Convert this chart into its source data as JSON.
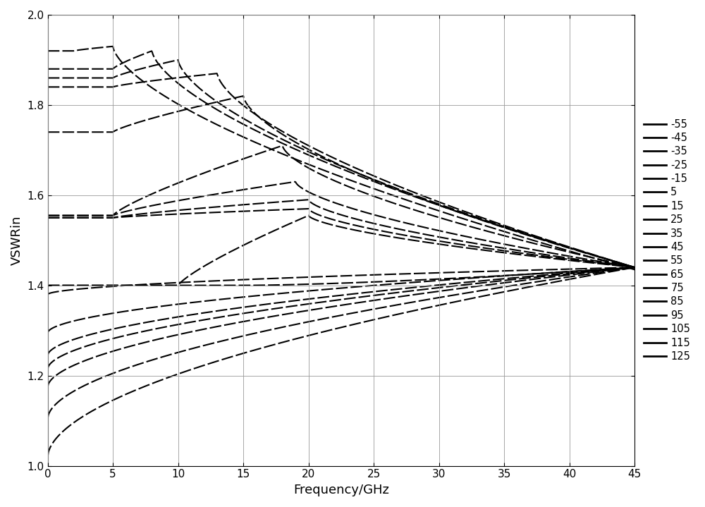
{
  "temperatures": [
    -55,
    -45,
    -35,
    -25,
    -15,
    5,
    15,
    25,
    35,
    45,
    55,
    65,
    75,
    85,
    95,
    105,
    115,
    125
  ],
  "freq_range": [
    0,
    45
  ],
  "ylim": [
    1.0,
    2.0
  ],
  "xlabel": "Frequency/GHz",
  "ylabel": "VSWRin",
  "xticks": [
    0,
    5,
    10,
    15,
    20,
    25,
    30,
    35,
    40,
    45
  ],
  "yticks": [
    1.0,
    1.2,
    1.4,
    1.6,
    1.8,
    2.0
  ],
  "line_color": "#000000",
  "background_color": "#ffffff",
  "grid_color": "#999999",
  "curve_data": {
    "-55": {
      "start": 1.92,
      "flat_end": 2.0,
      "peak": 1.93,
      "peak_f": 5.0,
      "end": 1.435,
      "shape": "flat_peak_fall"
    },
    "-45": {
      "start": 1.88,
      "flat_end": 5.0,
      "peak": 1.92,
      "peak_f": 8.0,
      "end": 1.44,
      "shape": "flat_peak_fall"
    },
    "-35": {
      "start": 1.86,
      "flat_end": 5.0,
      "peak": 1.9,
      "peak_f": 10.0,
      "end": 1.44,
      "shape": "flat_peak_fall"
    },
    "-25": {
      "start": 1.84,
      "flat_end": 5.0,
      "peak": 1.87,
      "peak_f": 13.0,
      "end": 1.44,
      "shape": "flat_peak_fall"
    },
    "-15": {
      "start": 1.74,
      "flat_end": 5.0,
      "peak": 1.82,
      "peak_f": 15.0,
      "end": 1.44,
      "shape": "flat_peak_fall"
    },
    "5": {
      "start": 1.555,
      "flat_end": 5.0,
      "peak": 1.71,
      "peak_f": 18.0,
      "end": 1.44,
      "shape": "flat_peak_fall"
    },
    "15": {
      "start": 1.555,
      "flat_end": 5.0,
      "peak": 1.63,
      "peak_f": 19.0,
      "end": 1.44,
      "shape": "flat_peak_fall"
    },
    "25": {
      "start": 1.55,
      "flat_end": 5.0,
      "peak": 1.59,
      "peak_f": 20.0,
      "end": 1.44,
      "shape": "flat_peak_fall"
    },
    "35": {
      "start": 1.55,
      "flat_end": 5.0,
      "peak": 1.57,
      "peak_f": 20.0,
      "end": 1.44,
      "shape": "flat_peak_fall"
    },
    "45": {
      "start": 1.4,
      "flat_end": 10.0,
      "peak": 1.555,
      "peak_f": 20.0,
      "end": 1.44,
      "shape": "flat_peak_fall"
    },
    "55": {
      "start": 1.4,
      "flat_end": 15.0,
      "peak": 1.41,
      "peak_f": 17.0,
      "end": 1.44,
      "shape": "flat_fall"
    },
    "65": {
      "start": 1.38,
      "flat_end": 0.0,
      "peak": 1.38,
      "peak_f": 0.0,
      "end": 1.44,
      "shape": "rise"
    },
    "75": {
      "start": 1.295,
      "flat_end": 0.0,
      "peak": 1.295,
      "peak_f": 0.0,
      "end": 1.44,
      "shape": "rise"
    },
    "85": {
      "start": 1.245,
      "flat_end": 0.0,
      "peak": 1.245,
      "peak_f": 0.0,
      "end": 1.44,
      "shape": "rise"
    },
    "95": {
      "start": 1.215,
      "flat_end": 0.0,
      "peak": 1.215,
      "peak_f": 0.0,
      "end": 1.44,
      "shape": "rise"
    },
    "105": {
      "start": 1.175,
      "flat_end": 0.0,
      "peak": 1.175,
      "peak_f": 0.0,
      "end": 1.44,
      "shape": "rise"
    },
    "115": {
      "start": 1.105,
      "flat_end": 0.0,
      "peak": 1.105,
      "peak_f": 0.0,
      "end": 1.44,
      "shape": "rise"
    },
    "125": {
      "start": 1.02,
      "flat_end": 0.0,
      "peak": 1.02,
      "peak_f": 0.0,
      "end": 1.44,
      "shape": "rise"
    }
  }
}
